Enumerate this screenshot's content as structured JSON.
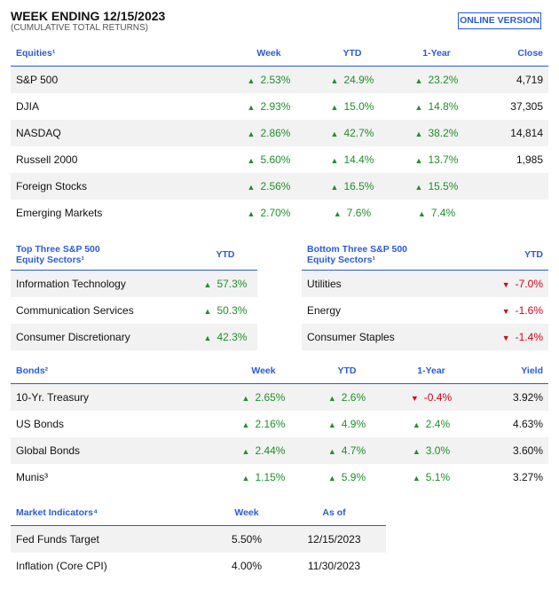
{
  "header": {
    "title": "WEEK ENDING 12/15/2023",
    "subtitle": "(CUMULATIVE TOTAL RETURNS)",
    "button": "ONLINE VERSION"
  },
  "equities": {
    "header": [
      "Equities¹",
      "Week",
      "YTD",
      "1-Year",
      "Close"
    ],
    "rows": [
      [
        "S&P 500",
        "2.53%",
        "24.9%",
        "23.2%",
        "4,719"
      ],
      [
        "DJIA",
        "2.93%",
        "15.0%",
        "14.8%",
        "37,305"
      ],
      [
        "NASDAQ",
        "2.86%",
        "42.7%",
        "38.2%",
        "14,814"
      ],
      [
        "Russell 2000",
        "5.60%",
        "14.4%",
        "13.7%",
        "1,985"
      ],
      [
        "Foreign Stocks",
        "2.56%",
        "16.5%",
        "15.5%",
        ""
      ],
      [
        "Emerging Markets",
        "2.70%",
        "7.6%",
        "7.4%",
        ""
      ]
    ]
  },
  "top_sectors": {
    "header": [
      [
        "Top Three S&P 500",
        "Equity Sectors¹"
      ],
      "YTD"
    ],
    "rows": [
      [
        "Information Technology",
        "57.3%"
      ],
      [
        "Communication Services",
        "50.3%"
      ],
      [
        "Consumer Discretionary",
        "42.3%"
      ]
    ]
  },
  "bottom_sectors": {
    "header": [
      [
        "Bottom Three S&P 500",
        "Equity Sectors¹"
      ],
      "YTD"
    ],
    "rows": [
      [
        "Utilities",
        "-7.0%"
      ],
      [
        "Energy",
        "-1.6%"
      ],
      [
        "Consumer Staples",
        "-1.4%"
      ]
    ]
  },
  "bonds": {
    "header": [
      "Bonds²",
      "Week",
      "YTD",
      "1-Year",
      "Yield"
    ],
    "rows": [
      [
        "10-Yr. Treasury",
        "2.65%",
        "2.6%",
        "-0.4%",
        "3.92%"
      ],
      [
        "US Bonds",
        "2.16%",
        "4.9%",
        "2.4%",
        "4.63%"
      ],
      [
        "Global Bonds",
        "2.44%",
        "4.7%",
        "3.0%",
        "3.60%"
      ],
      [
        "Munis³",
        "1.15%",
        "5.9%",
        "5.1%",
        "3.27%"
      ]
    ]
  },
  "market_indicators": {
    "header": [
      "Market Indicators⁴",
      "Week",
      "As of"
    ],
    "rows": [
      [
        "Fed Funds Target",
        "5.50%",
        "12/15/2023"
      ],
      [
        "Inflation (Core CPI)",
        "4.00%",
        "11/30/2023"
      ]
    ]
  }
}
